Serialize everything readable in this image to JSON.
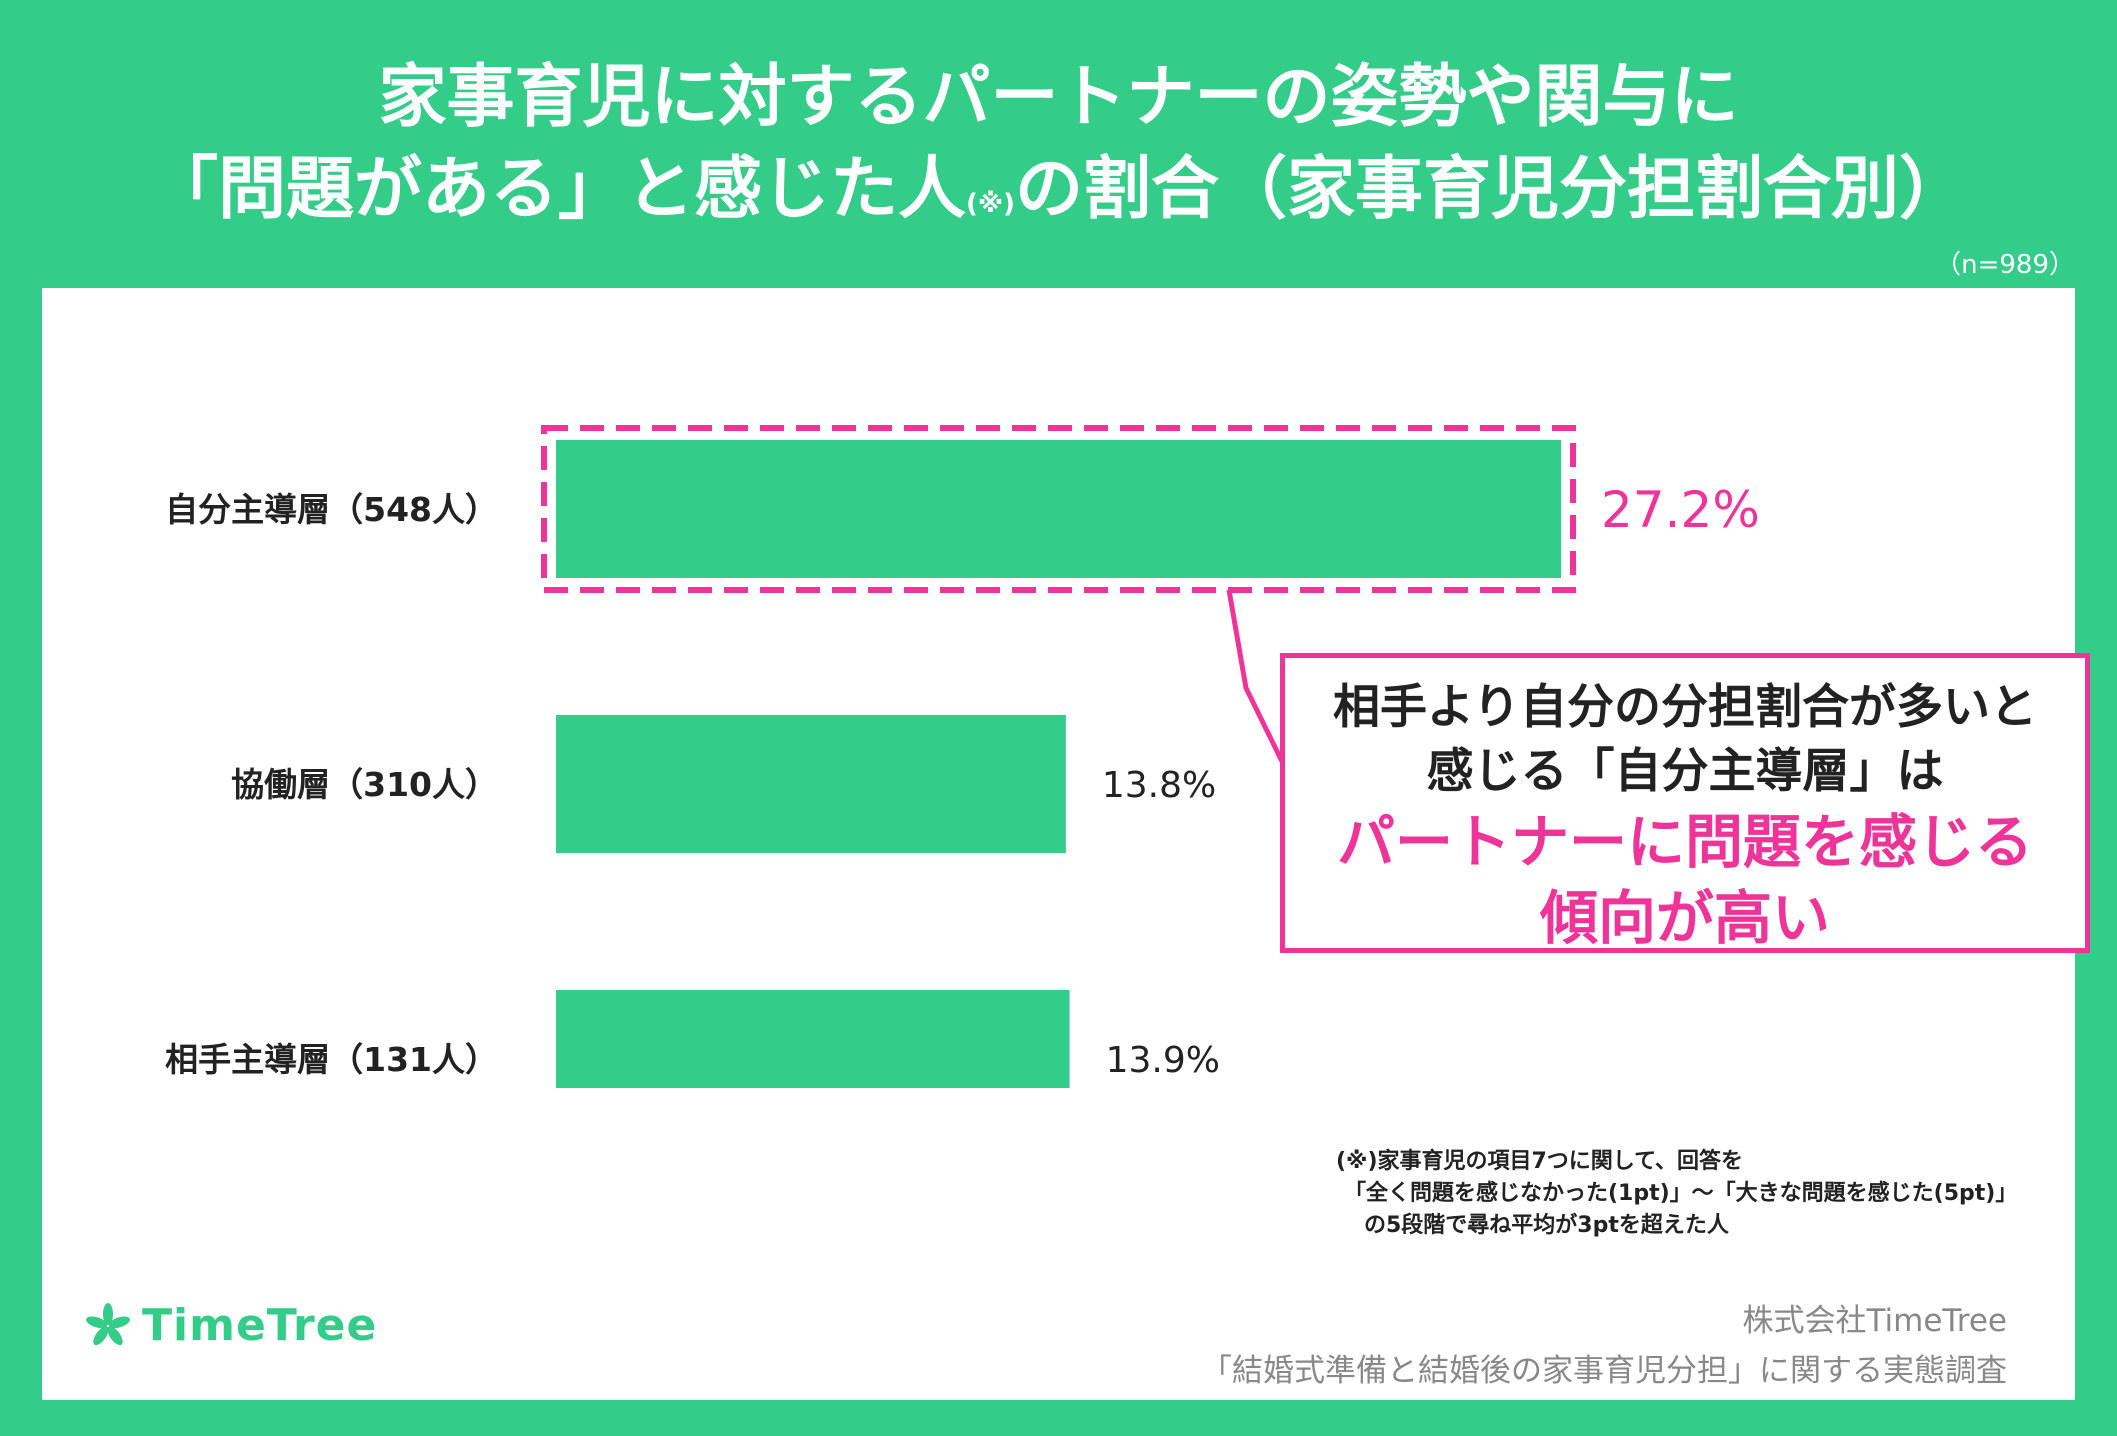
{
  "title": {
    "line1": "家事育児に対するパートナーの姿勢や関与に",
    "line2_a": "「問題がある」と感じた人",
    "line2_note": "(※)",
    "line2_b": "の割合（家事育児分担割合別）"
  },
  "sample_size": "（n=989）",
  "colors": {
    "bar": "#33cc88",
    "highlight": "#ee3399",
    "background": "#33cc88"
  },
  "chart_data": {
    "type": "bar",
    "orientation": "horizontal",
    "categories": [
      "自分主導層（548人）",
      "協働層（310人）",
      "相手主導層（131人）"
    ],
    "values": [
      27.2,
      13.8,
      13.9
    ],
    "value_labels": [
      "27.2%",
      "13.8%",
      "13.9%"
    ],
    "highlighted_index": 0,
    "unit": "%",
    "xlim": [
      0,
      27.2
    ]
  },
  "callout": {
    "line1": "相手より自分の分担割合が多いと",
    "line2": "感じる「自分主導層」は",
    "line3": "パートナーに問題を感じる",
    "line4": "傾向が高い"
  },
  "footnote": {
    "line1": "(※)家事育児の項目7つに関して、回答を",
    "line2": "「全く問題を感じなかった(1pt)」～「大きな問題を感じた(5pt)」",
    "line3": "の5段階で尋ね平均が3ptを超えた人"
  },
  "logo": {
    "text": "TimeTree",
    "icon": "leaf-clover-icon"
  },
  "source": {
    "company": "株式会社TimeTree",
    "survey": "「結婚式準備と結婚後の家事育児分担」に関する実態調査"
  }
}
